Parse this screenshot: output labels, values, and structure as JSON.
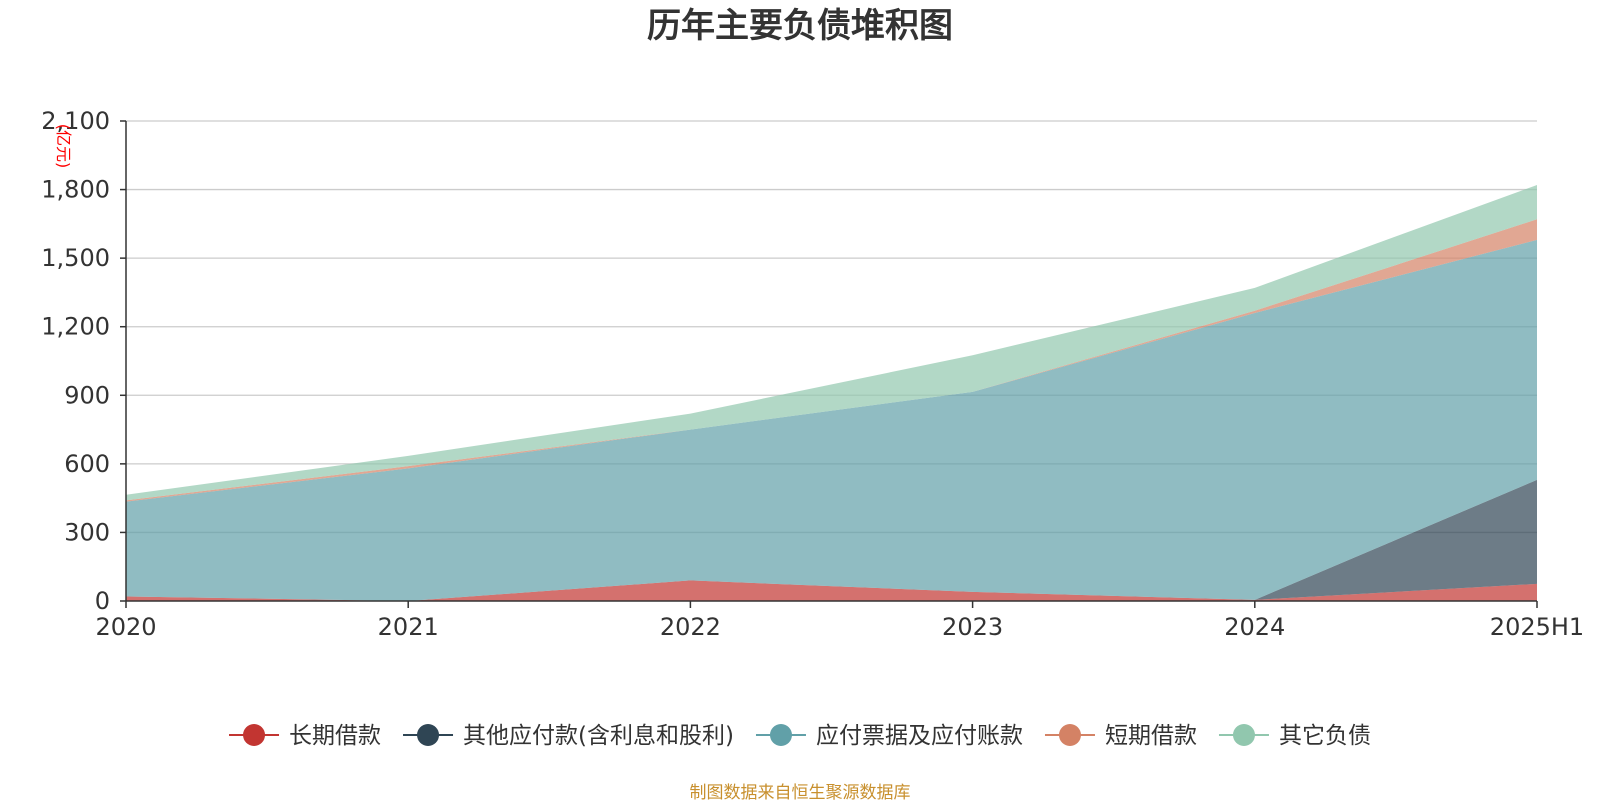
{
  "title": "历年主要负债堆积图",
  "source_note": "制图数据来自恒生聚源数据库",
  "chart_data": {
    "type": "area",
    "stacked": true,
    "title": "历年主要负债堆积图",
    "unit": "(亿元)",
    "categories": [
      "2020",
      "2021",
      "2022",
      "2023",
      "2024",
      "2025H1"
    ],
    "ylim": [
      0,
      2100
    ],
    "yticks": [
      0,
      300,
      600,
      900,
      1200,
      1500,
      1800,
      2100
    ],
    "ytick_labels": [
      "0",
      "300",
      "600",
      "900",
      "1,200",
      "1,500",
      "1,800",
      "2,100"
    ],
    "grid": true,
    "legend_position": "bottom",
    "series": [
      {
        "name": "长期借款",
        "color": "#c23531",
        "values": [
          20,
          0,
          90,
          40,
          5,
          75
        ]
      },
      {
        "name": "其他应付款(含利息和股利)",
        "color": "#2f4554",
        "values": [
          0,
          0,
          0,
          0,
          0,
          455
        ]
      },
      {
        "name": "应付票据及应付账款",
        "color": "#61a0a8",
        "values": [
          415,
          580,
          660,
          875,
          1255,
          1050
        ]
      },
      {
        "name": "短期借款",
        "color": "#d48265",
        "values": [
          5,
          10,
          0,
          0,
          10,
          90
        ]
      },
      {
        "name": "其它负债",
        "color": "#91c7ae",
        "values": [
          25,
          45,
          70,
          160,
          100,
          150
        ]
      }
    ]
  }
}
